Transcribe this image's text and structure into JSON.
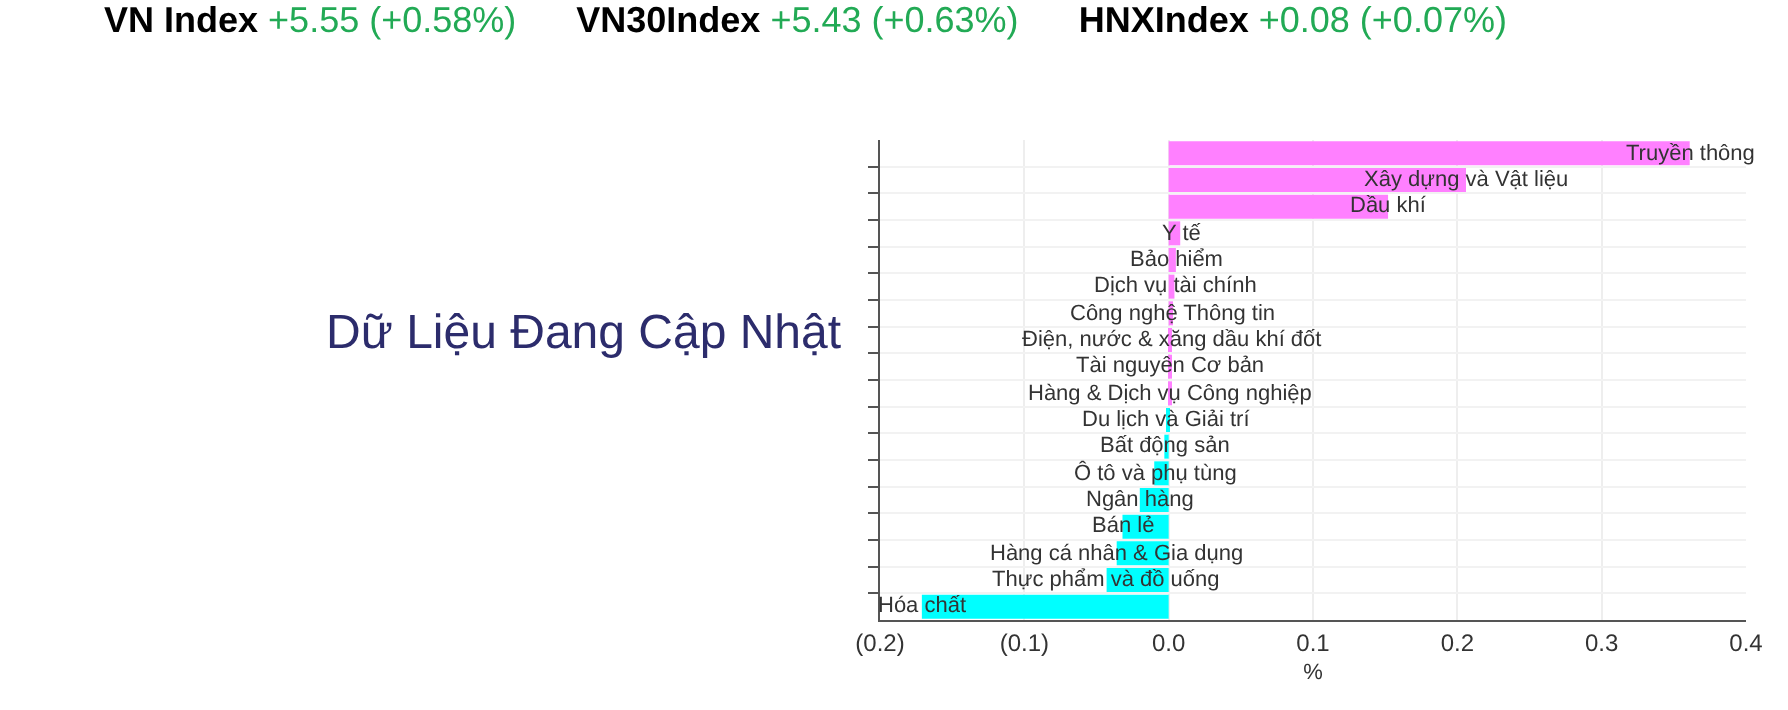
{
  "chart_data": {
    "type": "bar",
    "orientation": "horizontal",
    "categories": [
      "Truyền thông",
      "Xây dựng và Vật liệu",
      "Dầu khí",
      "Y tế",
      "Bảo hiểm",
      "Dịch vụ tài chính",
      "Công nghệ Thông tin",
      "Điện, nước & xăng dầu khí đốt",
      "Tài nguyên Cơ bản",
      "Hàng & Dịch vụ Công nghiệp",
      "Du lịch và Giải trí",
      "Bất động sản",
      "Ô tô và phụ tùng",
      "Ngân hàng",
      "Bán lẻ",
      "Hàng cá nhân & Gia dụng",
      "Thực phẩm và đồ uống",
      "Hóa chất"
    ],
    "values": [
      0.361,
      0.206,
      0.152,
      0.008,
      0.005,
      0.004,
      0.003,
      0.002,
      0.001,
      0.001,
      -0.001,
      -0.003,
      -0.01,
      -0.02,
      -0.032,
      -0.036,
      -0.043,
      -0.171
    ],
    "colors": [
      "#ff80ff",
      "#ff80ff",
      "#ff80ff",
      "#ff80ff",
      "#ff80ff",
      "#ff80ff",
      "#ff80ff",
      "#ff80ff",
      "#ff80ff",
      "#ff80ff",
      "#00ffff",
      "#00ffff",
      "#00ffff",
      "#00ffff",
      "#00ffff",
      "#00ffff",
      "#00ffff",
      "#00ffff"
    ],
    "xlim": [
      -0.2,
      0.4
    ],
    "xticks": [
      {
        "value": -0.2,
        "label": "(0.2)"
      },
      {
        "value": -0.1,
        "label": "(0.1)"
      },
      {
        "value": 0,
        "label": "0.0"
      },
      {
        "value": 0.1,
        "label": "0.1"
      },
      {
        "value": 0.2,
        "label": "0.2"
      },
      {
        "value": 0.3,
        "label": "0.3"
      },
      {
        "value": 0.4,
        "label": "0.4"
      }
    ],
    "xlabel": "%",
    "annotations": [
      "VN Index",
      "+5.55 (+0.58%)",
      "VN30Index",
      "+5.43 (+0.63%)",
      "HNXIndex",
      "+0.08 (+0.07%)",
      "Dữ Liệu Đang Cập Nhật"
    ],
    "grid": true,
    "tick_labels": "x"
  }
}
